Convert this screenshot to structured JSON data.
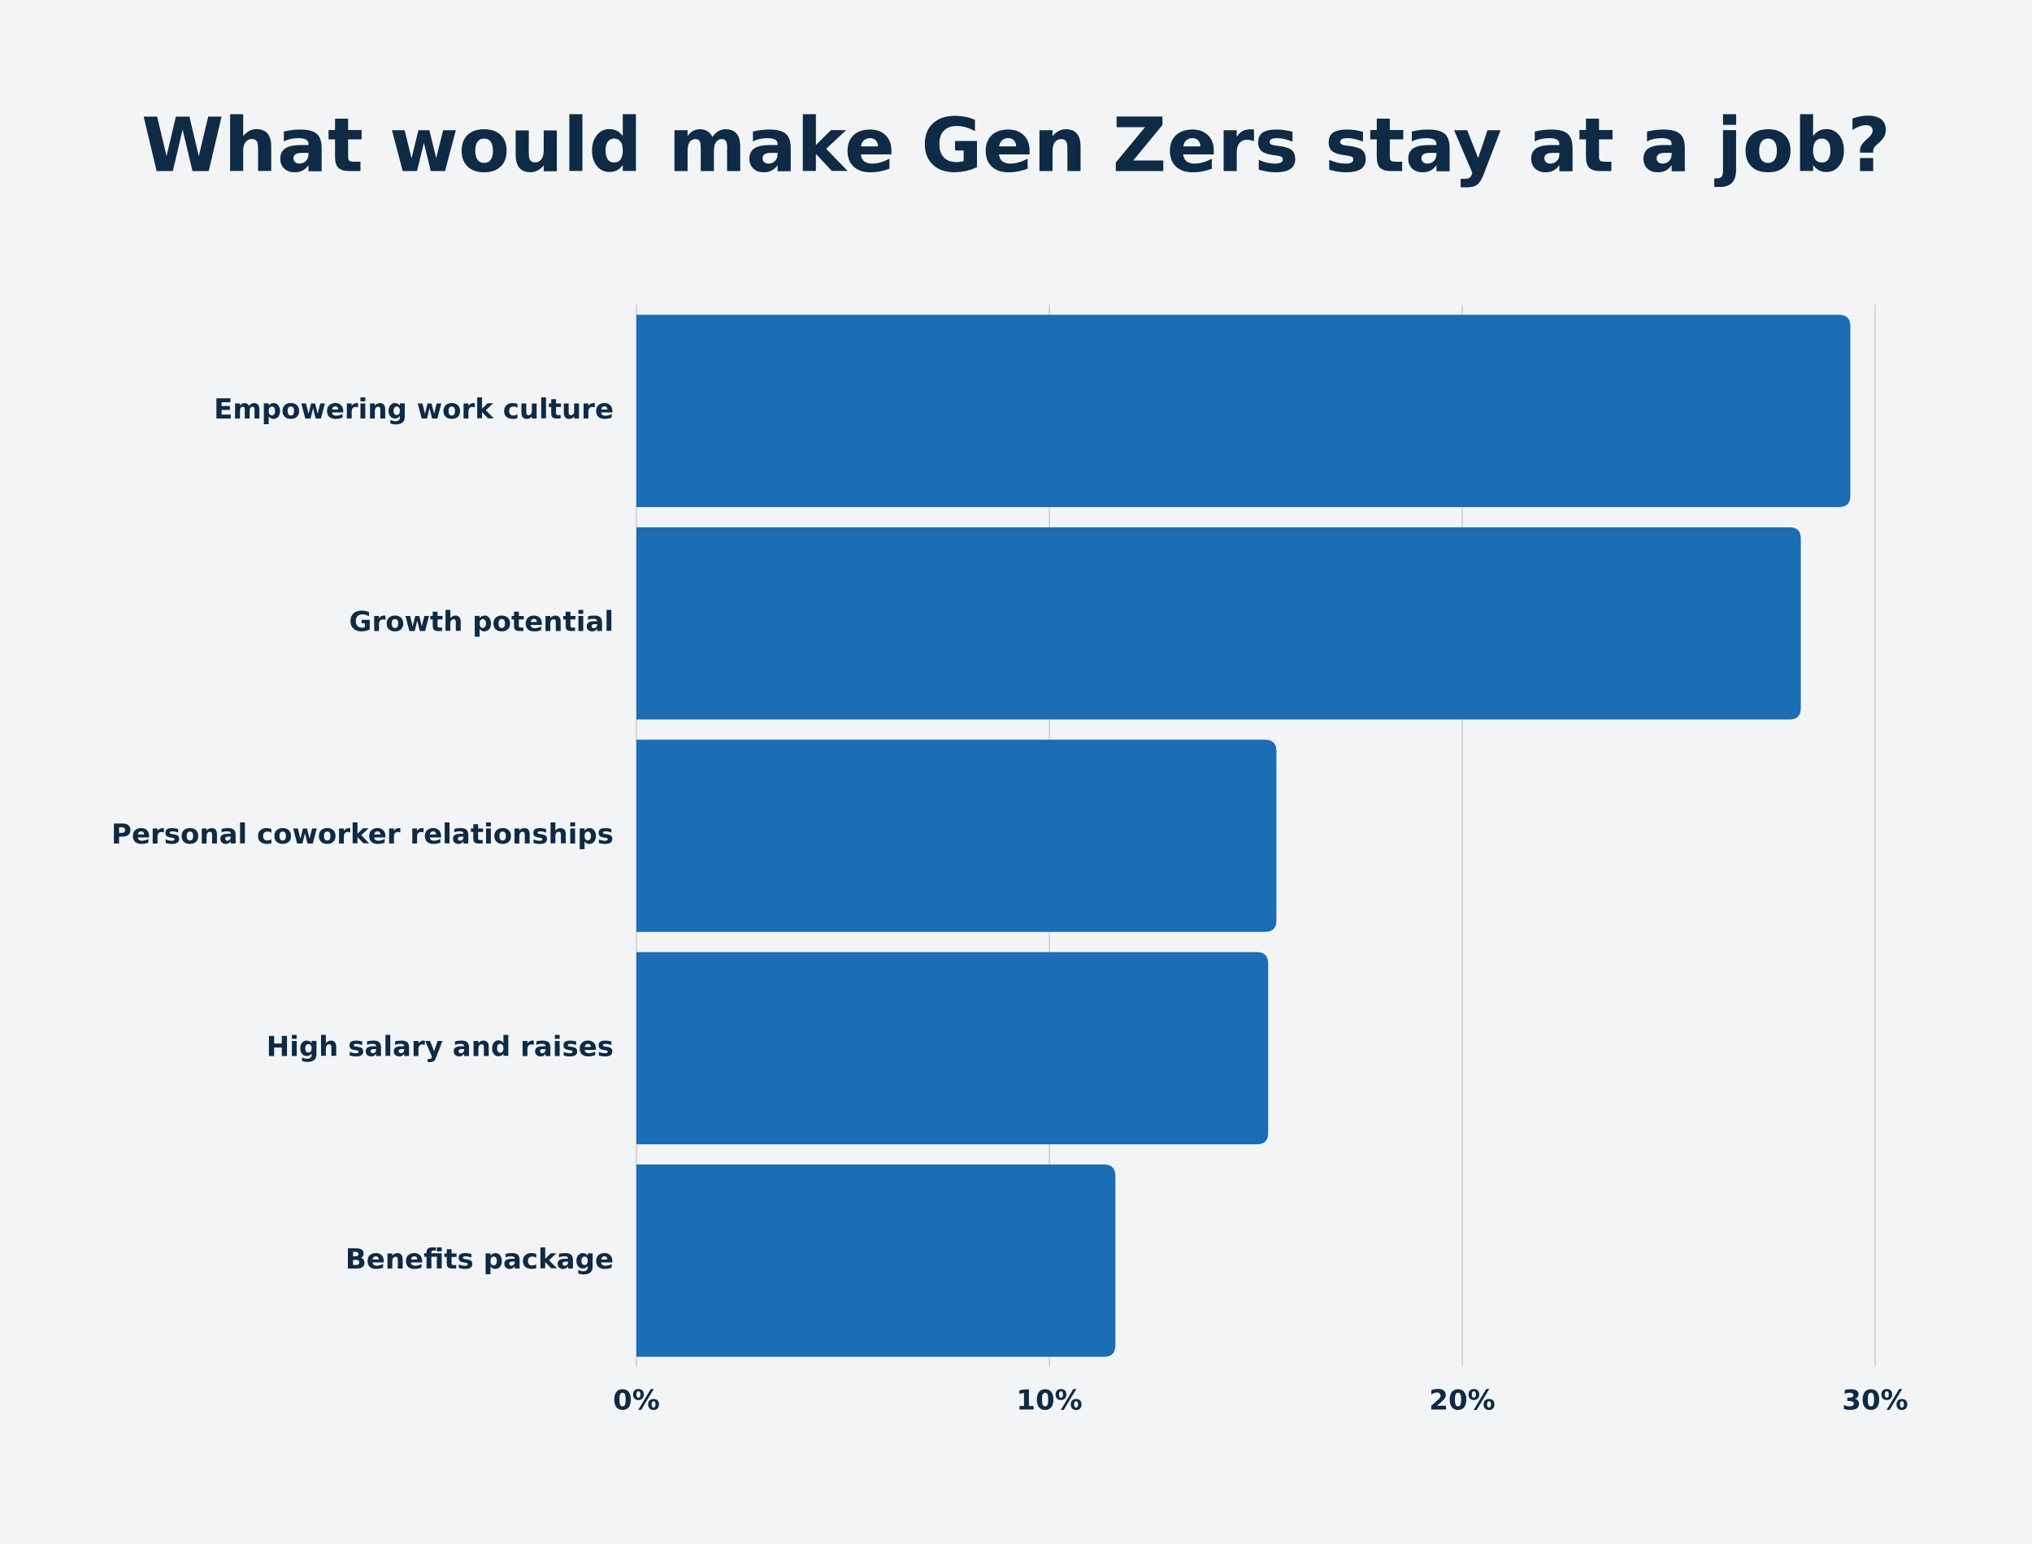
{
  "chart_data": {
    "type": "bar",
    "orientation": "horizontal",
    "title": "What would make Gen Zers stay at a job?",
    "categories": [
      "Empowering work culture",
      "Growth potential",
      "Personal coworker relationships",
      "High salary and raises",
      "Benefits package"
    ],
    "values": [
      29.4,
      28.2,
      15.5,
      15.3,
      11.6
    ],
    "color": "#1b6db4",
    "xlim": [
      0,
      30
    ],
    "xticks": [
      {
        "value": 0,
        "label": "0%"
      },
      {
        "value": 10,
        "label": "10%"
      },
      {
        "value": 20,
        "label": "20%"
      },
      {
        "value": 30,
        "label": "30%"
      }
    ],
    "grid": true
  }
}
